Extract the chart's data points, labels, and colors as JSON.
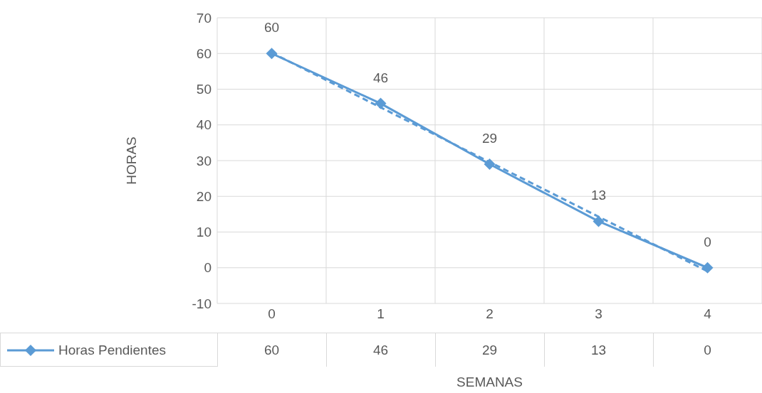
{
  "chart_data": {
    "type": "line",
    "xlabel": "SEMANAS",
    "ylabel": "HORAS",
    "categories": [
      "0",
      "1",
      "2",
      "3",
      "4"
    ],
    "series": [
      {
        "name": "Horas Pendientes",
        "color": "#5b9bd5",
        "values": [
          60,
          46,
          29,
          13,
          0
        ],
        "value_labels": [
          "60",
          "46",
          "29",
          "13",
          "0"
        ],
        "marker": "diamond"
      },
      {
        "type": "line",
        "values": [
          60.2,
          null,
          null,
          null,
          -1
        ],
        "color": "#5b9bd5",
        "line_style": "dashed",
        "marker": "none"
      }
    ],
    "ylim": [
      -10,
      70
    ],
    "yticks": [
      -10,
      0,
      10,
      20,
      30,
      40,
      50,
      60,
      70
    ],
    "grid": true,
    "legend": "bottom left"
  }
}
